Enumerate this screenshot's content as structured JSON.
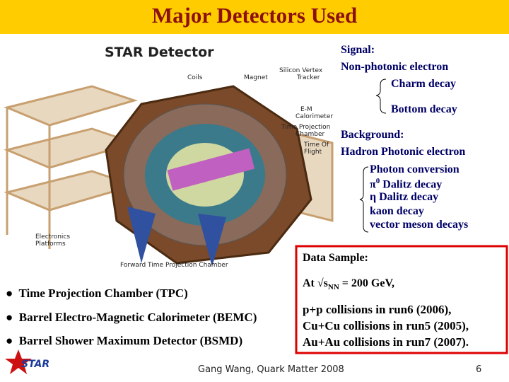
{
  "header": {
    "title": "Major Detectors Used"
  },
  "figure": {
    "title": "STAR Detector",
    "labels": [
      "Coils",
      "Magnet",
      "Silicon Vertex",
      "Tracker",
      "E-M",
      "Calorimeter",
      "Time Projection",
      "Chamber",
      "Time Of",
      "Flight",
      "Electronics",
      "Platforms",
      "Forward Time Projection Chamber"
    ]
  },
  "signal": {
    "heading": "Signal:",
    "source": "Non-photonic electron",
    "items": [
      "Charm decay",
      "Bottom decay"
    ]
  },
  "background": {
    "heading": "Background:",
    "source": "Hadron Photonic electron",
    "items": [
      {
        "text": "Photon conversion"
      },
      {
        "text": "π",
        "sup": "0",
        "rest": " Dalitz decay"
      },
      {
        "text": "η Dalitz decay"
      },
      {
        "text": "kaon decay"
      },
      {
        "text": "vector meson decays"
      }
    ]
  },
  "data_sample": {
    "heading": "Data Sample:",
    "energy": {
      "pre": "At √s",
      "sub": "NN",
      "post": " = 200 GeV,"
    },
    "runs": [
      "p+p collisions in run6 (2006),",
      "Cu+Cu collisions in run5 (2005),",
      "Au+Au collisions in run7 (2007)."
    ]
  },
  "bullets": [
    "Time Projection Chamber (TPC)",
    "Barrel Electro-Magnetic Calorimeter (BEMC)",
    "Barrel Shower Maximum Detector (BSMD)"
  ],
  "footer": {
    "logo": "STAR",
    "author": "Gang Wang, Quark Matter 2008",
    "page": "6"
  }
}
